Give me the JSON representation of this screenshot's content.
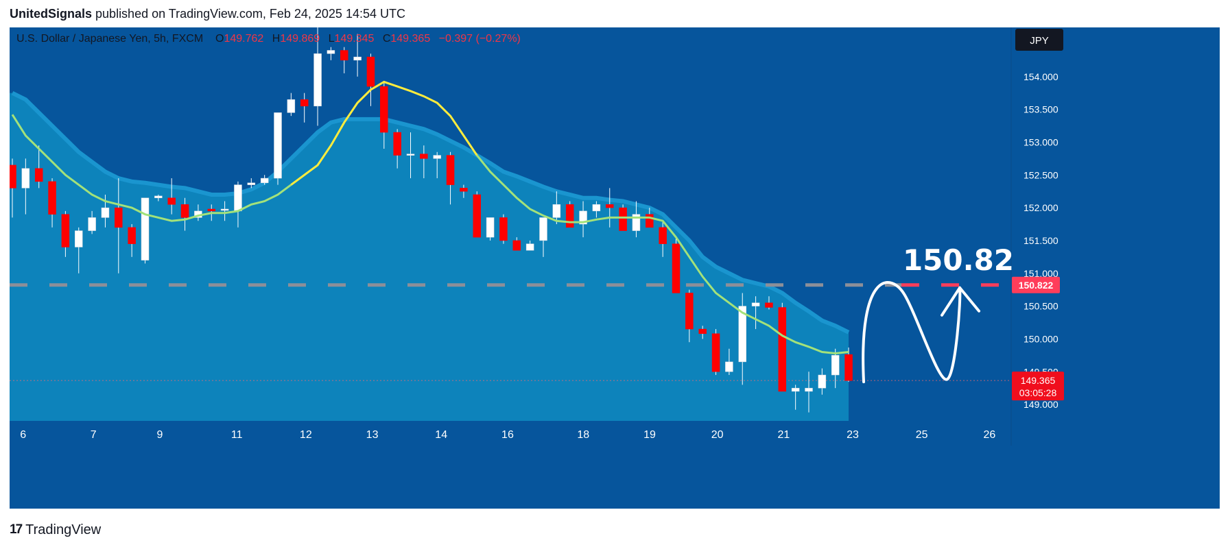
{
  "publisher": {
    "author": "UnitedSignals",
    "text": "published on TradingView.com, Feb 24, 2025 14:54 UTC"
  },
  "footer": {
    "brand": "TradingView",
    "icon": "tradingview-logo-icon"
  },
  "chart_data": {
    "type": "candlestick",
    "symbol_line": "U.S. Dollar / Japanese Yen, 5h, FXCM",
    "ohlc_readout": {
      "o_label": "O",
      "o": "149.762",
      "h_label": "H",
      "h": "149.869",
      "l_label": "L",
      "l": "149.345",
      "c_label": "C",
      "c": "149.365",
      "change": "−0.397 (−0.27%)"
    },
    "currency_badge": "JPY",
    "ylim": [
      148.75,
      154.75
    ],
    "y_ticks": [
      "149.000",
      "149.500",
      "150.000",
      "150.500",
      "151.000",
      "151.500",
      "152.000",
      "152.500",
      "153.000",
      "153.500",
      "154.000"
    ],
    "x_tick_labels": [
      {
        "label": "6",
        "bar": 0.5
      },
      {
        "label": "7",
        "bar": 5.8
      },
      {
        "label": "9",
        "bar": 10.8
      },
      {
        "label": "11",
        "bar": 16.6
      },
      {
        "label": "12",
        "bar": 21.8
      },
      {
        "label": "13",
        "bar": 26.8
      },
      {
        "label": "14",
        "bar": 32.0
      },
      {
        "label": "16",
        "bar": 37.0
      },
      {
        "label": "18",
        "bar": 42.7
      },
      {
        "label": "19",
        "bar": 47.7
      },
      {
        "label": "20",
        "bar": 52.8
      },
      {
        "label": "21",
        "bar": 57.8
      },
      {
        "label": "23",
        "bar": 63.0
      },
      {
        "label": "25",
        "bar": 68.2
      },
      {
        "label": "26",
        "bar": 73.3
      }
    ],
    "candles": [
      [
        152.65,
        152.75,
        151.85,
        152.3
      ],
      [
        152.3,
        152.75,
        151.9,
        152.6
      ],
      [
        152.6,
        152.95,
        152.3,
        152.4
      ],
      [
        152.4,
        152.45,
        151.7,
        151.9
      ],
      [
        151.9,
        151.95,
        151.25,
        151.4
      ],
      [
        151.4,
        151.7,
        151.0,
        151.65
      ],
      [
        151.65,
        151.95,
        151.6,
        151.85
      ],
      [
        151.85,
        152.2,
        151.7,
        152.0
      ],
      [
        152.0,
        152.45,
        151.0,
        151.7
      ],
      [
        151.7,
        151.75,
        151.25,
        151.45
      ],
      [
        151.2,
        152.15,
        151.15,
        152.15
      ],
      [
        152.15,
        152.2,
        152.1,
        152.18
      ],
      [
        152.15,
        152.45,
        151.9,
        152.05
      ],
      [
        152.05,
        152.15,
        151.65,
        151.85
      ],
      [
        151.85,
        152.05,
        151.8,
        151.95
      ],
      [
        151.98,
        152.05,
        151.8,
        151.95
      ],
      [
        151.98,
        152.1,
        151.8,
        151.98
      ],
      [
        151.95,
        152.4,
        151.7,
        152.35
      ],
      [
        152.35,
        152.45,
        152.3,
        152.38
      ],
      [
        152.38,
        152.5,
        152.35,
        152.45
      ],
      [
        152.45,
        153.45,
        152.35,
        153.45
      ],
      [
        153.45,
        153.75,
        153.4,
        153.65
      ],
      [
        153.65,
        153.75,
        153.3,
        153.55
      ],
      [
        153.55,
        155.0,
        153.25,
        154.35
      ],
      [
        154.35,
        154.45,
        154.25,
        154.4
      ],
      [
        154.4,
        154.45,
        154.05,
        154.25
      ],
      [
        154.25,
        154.65,
        154.0,
        154.3
      ],
      [
        154.3,
        154.35,
        153.55,
        153.85
      ],
      [
        153.85,
        153.9,
        152.9,
        153.15
      ],
      [
        153.15,
        153.2,
        152.6,
        152.8
      ],
      [
        152.8,
        153.15,
        152.45,
        152.82
      ],
      [
        152.82,
        152.95,
        152.45,
        152.75
      ],
      [
        152.75,
        152.85,
        152.45,
        152.8
      ],
      [
        152.8,
        152.85,
        152.05,
        152.35
      ],
      [
        152.3,
        152.35,
        152.15,
        152.25
      ],
      [
        152.2,
        152.25,
        151.55,
        151.55
      ],
      [
        151.55,
        151.85,
        151.5,
        151.85
      ],
      [
        151.85,
        151.9,
        151.45,
        151.5
      ],
      [
        151.5,
        151.55,
        151.35,
        151.35
      ],
      [
        151.35,
        151.5,
        151.35,
        151.45
      ],
      [
        151.5,
        151.85,
        151.25,
        151.85
      ],
      [
        151.85,
        152.25,
        151.75,
        152.05
      ],
      [
        152.05,
        152.1,
        151.7,
        151.7
      ],
      [
        151.75,
        152.1,
        151.55,
        151.95
      ],
      [
        151.95,
        152.1,
        151.85,
        152.05
      ],
      [
        152.05,
        152.3,
        151.7,
        152.0
      ],
      [
        152.0,
        152.05,
        151.65,
        151.65
      ],
      [
        151.65,
        152.1,
        151.55,
        151.9
      ],
      [
        151.9,
        152.0,
        151.7,
        151.7
      ],
      [
        151.7,
        151.8,
        151.25,
        151.45
      ],
      [
        151.45,
        151.55,
        150.7,
        150.7
      ],
      [
        150.7,
        150.75,
        149.95,
        150.15
      ],
      [
        150.15,
        150.2,
        150.0,
        150.08
      ],
      [
        150.08,
        150.15,
        149.45,
        149.5
      ],
      [
        149.5,
        149.85,
        149.45,
        149.65
      ],
      [
        149.65,
        150.7,
        149.3,
        150.5
      ],
      [
        150.5,
        150.65,
        150.15,
        150.55
      ],
      [
        150.55,
        150.65,
        150.45,
        150.48
      ],
      [
        150.48,
        150.55,
        149.2,
        149.2
      ],
      [
        149.2,
        149.3,
        148.92,
        149.25
      ],
      [
        149.2,
        149.5,
        148.88,
        149.25
      ],
      [
        149.25,
        149.55,
        149.15,
        149.45
      ],
      [
        149.45,
        149.85,
        149.25,
        149.75
      ],
      [
        149.762,
        149.869,
        149.345,
        149.365
      ]
    ],
    "ma_yellow": [
      153.42,
      153.1,
      152.9,
      152.7,
      152.5,
      152.35,
      152.2,
      152.1,
      152.05,
      152.0,
      151.9,
      151.85,
      151.8,
      151.82,
      151.88,
      151.92,
      151.92,
      151.95,
      152.05,
      152.1,
      152.2,
      152.35,
      152.5,
      152.65,
      152.95,
      153.3,
      153.6,
      153.8,
      153.92,
      153.85,
      153.78,
      153.7,
      153.6,
      153.4,
      153.1,
      152.8,
      152.55,
      152.35,
      152.15,
      151.98,
      151.88,
      151.8,
      151.78,
      151.78,
      151.82,
      151.85,
      151.85,
      151.85,
      151.85,
      151.8,
      151.55,
      151.25,
      150.95,
      150.7,
      150.55,
      150.4,
      150.3,
      150.2,
      150.05,
      149.95,
      149.88,
      149.8,
      149.78,
      149.8
    ],
    "envelope_upper": [
      153.75,
      153.65,
      153.45,
      153.25,
      153.05,
      152.85,
      152.7,
      152.55,
      152.45,
      152.4,
      152.38,
      152.35,
      152.32,
      152.3,
      152.25,
      152.2,
      152.2,
      152.22,
      152.28,
      152.38,
      152.55,
      152.75,
      152.95,
      153.15,
      153.3,
      153.35,
      153.35,
      153.35,
      153.35,
      153.3,
      153.25,
      153.2,
      153.12,
      153.02,
      152.92,
      152.8,
      152.68,
      152.55,
      152.48,
      152.4,
      152.32,
      152.25,
      152.2,
      152.15,
      152.15,
      152.12,
      152.1,
      152.05,
      152.0,
      151.9,
      151.7,
      151.5,
      151.25,
      151.1,
      151.0,
      150.9,
      150.85,
      150.8,
      150.7,
      150.55,
      150.42,
      150.28,
      150.2,
      150.1
    ],
    "current_price": {
      "value": 149.365,
      "label": "149.365",
      "countdown": "03:05:28"
    },
    "target": {
      "value": 150.822,
      "label": "150.822",
      "big_label": "150.82"
    },
    "colors": {
      "background": "#06559c",
      "envelope_fill": "#0d83bb",
      "envelope_edge": "#1a95cf",
      "bull": "#ffffff",
      "bear": "#ff0000",
      "ma_yellow": "#ffec3d",
      "ma_green": "#a3e27a",
      "target_line": "#ff3d5a",
      "current_tag": "#f00e1d",
      "axis_text": "#ffffff",
      "title_text": "#131722",
      "readout_red": "#f23645"
    }
  }
}
